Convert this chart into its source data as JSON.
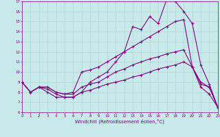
{
  "xlabel": "Windchill (Refroidissement éolien,°C)",
  "xlim": [
    0,
    23
  ],
  "ylim": [
    6,
    17
  ],
  "xticks": [
    0,
    1,
    2,
    3,
    4,
    5,
    6,
    7,
    8,
    9,
    10,
    11,
    12,
    13,
    14,
    15,
    16,
    17,
    18,
    19,
    20,
    21,
    22,
    23
  ],
  "yticks": [
    6,
    7,
    8,
    9,
    10,
    11,
    12,
    13,
    14,
    15,
    16,
    17
  ],
  "background_color": "#c8eaea",
  "line_color": "#800080",
  "grid_color": "#b0cccc",
  "line1_x": [
    0,
    1,
    2,
    3,
    4,
    5,
    6,
    7,
    8,
    9,
    10,
    11,
    12,
    13,
    14,
    15,
    16,
    17,
    18,
    19,
    20,
    21,
    22,
    23
  ],
  "line1_y": [
    9.0,
    8.0,
    8.5,
    8.0,
    7.5,
    7.5,
    7.5,
    8.0,
    9.0,
    9.5,
    10.0,
    11.0,
    12.0,
    14.5,
    14.2,
    15.5,
    14.8,
    17.2,
    17.0,
    16.0,
    14.8,
    10.7,
    8.8,
    6.5
  ],
  "line2_x": [
    0,
    1,
    2,
    3,
    4,
    5,
    6,
    7,
    8,
    9,
    10,
    11,
    12,
    13,
    14,
    15,
    16,
    17,
    18,
    19,
    20,
    21,
    22,
    23
  ],
  "line2_y": [
    9.0,
    8.0,
    8.5,
    8.5,
    8.0,
    7.8,
    8.0,
    10.0,
    10.2,
    10.5,
    11.0,
    11.5,
    12.0,
    12.5,
    13.0,
    13.5,
    14.0,
    14.5,
    15.0,
    15.2,
    10.5,
    9.0,
    8.5,
    6.5
  ],
  "line3_x": [
    0,
    1,
    2,
    3,
    4,
    5,
    6,
    7,
    8,
    9,
    10,
    11,
    12,
    13,
    14,
    15,
    16,
    17,
    18,
    19,
    20,
    21,
    22,
    23
  ],
  "line3_y": [
    9.0,
    8.0,
    8.5,
    8.5,
    8.0,
    7.8,
    7.8,
    8.5,
    8.8,
    9.0,
    9.5,
    10.0,
    10.3,
    10.7,
    11.0,
    11.3,
    11.5,
    11.8,
    12.0,
    12.2,
    10.5,
    8.8,
    8.5,
    6.5
  ],
  "line4_x": [
    0,
    1,
    2,
    3,
    4,
    5,
    6,
    7,
    8,
    9,
    10,
    11,
    12,
    13,
    14,
    15,
    16,
    17,
    18,
    19,
    20,
    21,
    22,
    23
  ],
  "line4_y": [
    9.0,
    8.0,
    8.5,
    8.3,
    7.8,
    7.5,
    7.5,
    8.0,
    8.2,
    8.5,
    8.8,
    9.0,
    9.2,
    9.5,
    9.7,
    10.0,
    10.3,
    10.5,
    10.7,
    11.0,
    10.5,
    8.5,
    7.8,
    6.5
  ],
  "marker": "+",
  "figsize": [
    3.2,
    2.0
  ],
  "dpi": 100
}
